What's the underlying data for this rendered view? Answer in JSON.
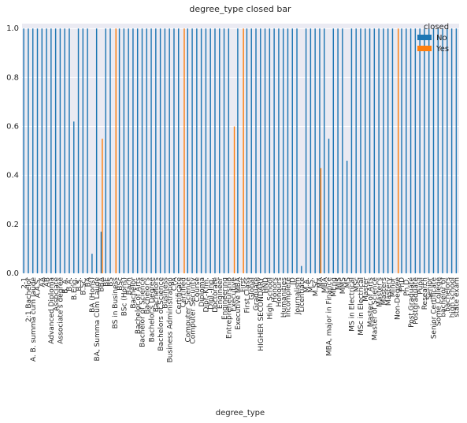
{
  "chart_data": {
    "type": "bar",
    "title": "degree_type closed bar",
    "xlabel": "degree_type",
    "legend_title": "closed",
    "legend": "upper right",
    "grid": true,
    "ylim": [
      0,
      1.02
    ],
    "yticks": [
      {
        "value": 0,
        "label": "0.0"
      },
      {
        "value": 0.2,
        "label": "0.2"
      },
      {
        "value": 0.4,
        "label": "0.4"
      },
      {
        "value": 0.6,
        "label": "0.6"
      },
      {
        "value": 0.8,
        "label": "0.8"
      },
      {
        "value": 1,
        "label": "1.0"
      }
    ],
    "categories": [
      "2-1",
      "2:1 Bachelor",
      "A. B. summa cum laude",
      "A.A.S.",
      "AA",
      "AB",
      "Advanced Diploma",
      "Associate",
      "Associate's degree",
      "B. A.",
      "B.A.",
      "B.Eng.",
      "B.S.",
      "B.Sc.",
      "BA",
      "BA (Hons)",
      "BA, Summa Cum Laude",
      "BBA",
      "BE",
      "BS",
      "BS in Business",
      "BSc",
      "BSc (Hons)",
      "Bach",
      "Bachelor",
      "Bachelor of Arts",
      "Bachelor of Science",
      "Bachelor's",
      "Bachelor's Degree",
      "Bachelors",
      "Bachelors of Science",
      "Business",
      "Business Administration",
      "CPA",
      "Certificate",
      "Certified",
      "Computer Science",
      "Computer Security",
      "Course",
      "Diploma",
      "Dipl.-Kfm.",
      "Dipl.-Ing.",
      "Doctorate",
      "Engineer",
      "Engineering",
      "Entrepreneurship",
      "Executive",
      "Executive MBA",
      "First",
      "First Class",
      "Global",
      "Graduate",
      "HIGHER SECONDARY",
      "HND",
      "High School",
      "Honors",
      "Honours",
      "Humanities",
      "Incomplete",
      "JD",
      "Journalism",
      "Licentiate",
      "M.A.",
      "M.S.",
      "M.Sc.",
      "MA",
      "MBA",
      "MBA, major in Finance",
      "MEng",
      "MIS",
      "MMS",
      "MS",
      "MS in Electrical",
      "MSc",
      "MSc in Electrical",
      "Master",
      "Master of Arts",
      "Master of Science",
      "Master's",
      "Masters",
      "Mastery",
      "Minor",
      "Non-Degree",
      "PhD",
      "Ph.D.",
      "Post Graduate",
      "Postgraduate",
      "Pupil",
      "Research",
      "Senior",
      "Senior Certificate",
      "Some College",
      "bachelor of",
      "bachelors",
      "high school",
      "state exam"
    ],
    "series": [
      {
        "name": "No",
        "color": "#1f77b4",
        "values": [
          1,
          1,
          1,
          1,
          1,
          1,
          1,
          1,
          1,
          1,
          1,
          0.62,
          1,
          1,
          1,
          0.08,
          1,
          0.17,
          1,
          1,
          0,
          1,
          1,
          1,
          1,
          1,
          1,
          1,
          1,
          1,
          1,
          1,
          1,
          1,
          1,
          0,
          1,
          1,
          1,
          1,
          1,
          1,
          1,
          1,
          1,
          1,
          0,
          1,
          0,
          1,
          1,
          1,
          1,
          1,
          1,
          1,
          1,
          1,
          1,
          1,
          1,
          0.03,
          1,
          1,
          1,
          1,
          1,
          0.55,
          1,
          1,
          1,
          0.46,
          1,
          1,
          1,
          1,
          1,
          1,
          1,
          1,
          1,
          1,
          0,
          1,
          1,
          1,
          1,
          1,
          1,
          1,
          1,
          1,
          1,
          1,
          1,
          1
        ]
      },
      {
        "name": "Yes",
        "color": "#ff7f0e",
        "values": [
          0,
          0,
          0,
          0,
          0,
          0,
          0,
          0,
          0,
          0,
          0,
          0,
          0,
          0,
          0,
          0,
          0,
          0.55,
          0,
          0,
          1,
          0,
          0,
          0,
          0,
          0,
          0,
          0,
          0,
          0,
          0,
          0,
          0,
          0,
          0,
          1,
          0,
          0,
          0,
          0,
          0,
          0,
          0,
          0,
          0,
          0,
          0.6,
          0,
          1,
          0,
          0,
          0,
          0,
          0,
          0,
          0,
          0,
          0,
          0,
          0,
          0,
          0,
          0,
          0,
          0,
          0.43,
          0,
          0,
          0,
          0,
          0,
          0,
          0,
          0,
          0,
          0,
          0,
          0,
          0,
          0,
          0,
          0,
          1,
          0,
          0,
          0,
          0,
          0,
          0,
          0,
          0,
          0,
          0,
          0,
          0,
          0
        ]
      }
    ]
  }
}
